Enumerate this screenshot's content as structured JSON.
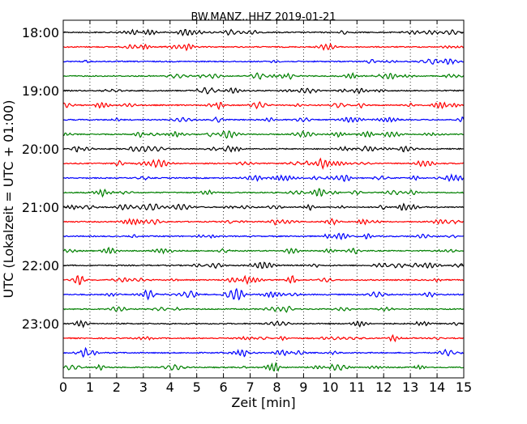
{
  "chart_data": {
    "type": "line",
    "title": "BW.MANZ..HHZ 2019-01-21",
    "xlabel": "Zeit  [min]",
    "ylabel": "UTC (Lokalzeit = UTC + 01:00)",
    "xlim": [
      0,
      15
    ],
    "x_ticks": [
      "0",
      "1",
      "2",
      "3",
      "4",
      "5",
      "6",
      "7",
      "8",
      "9",
      "10",
      "11",
      "12",
      "13",
      "14",
      "15"
    ],
    "y_ticks": [
      "18:00",
      "19:00",
      "20:00",
      "21:00",
      "22:00",
      "23:00"
    ],
    "grid": "vertical dotted",
    "trace_interval_min": 15,
    "series": [
      {
        "start": "18:00",
        "color": "#000000"
      },
      {
        "start": "18:15",
        "color": "#ff0000"
      },
      {
        "start": "18:30",
        "color": "#0000ff"
      },
      {
        "start": "18:45",
        "color": "#008000"
      },
      {
        "start": "19:00",
        "color": "#000000"
      },
      {
        "start": "19:15",
        "color": "#ff0000"
      },
      {
        "start": "19:30",
        "color": "#0000ff"
      },
      {
        "start": "19:45",
        "color": "#008000"
      },
      {
        "start": "20:00",
        "color": "#000000"
      },
      {
        "start": "20:15",
        "color": "#ff0000"
      },
      {
        "start": "20:30",
        "color": "#0000ff"
      },
      {
        "start": "20:45",
        "color": "#008000"
      },
      {
        "start": "21:00",
        "color": "#000000"
      },
      {
        "start": "21:15",
        "color": "#ff0000"
      },
      {
        "start": "21:30",
        "color": "#0000ff"
      },
      {
        "start": "21:45",
        "color": "#008000"
      },
      {
        "start": "22:00",
        "color": "#000000"
      },
      {
        "start": "22:15",
        "color": "#ff0000"
      },
      {
        "start": "22:30",
        "color": "#0000ff"
      },
      {
        "start": "22:45",
        "color": "#008000"
      },
      {
        "start": "23:00",
        "color": "#000000"
      },
      {
        "start": "23:15",
        "color": "#ff0000"
      },
      {
        "start": "23:30",
        "color": "#0000ff"
      },
      {
        "start": "23:45",
        "color": "#008000"
      }
    ]
  }
}
